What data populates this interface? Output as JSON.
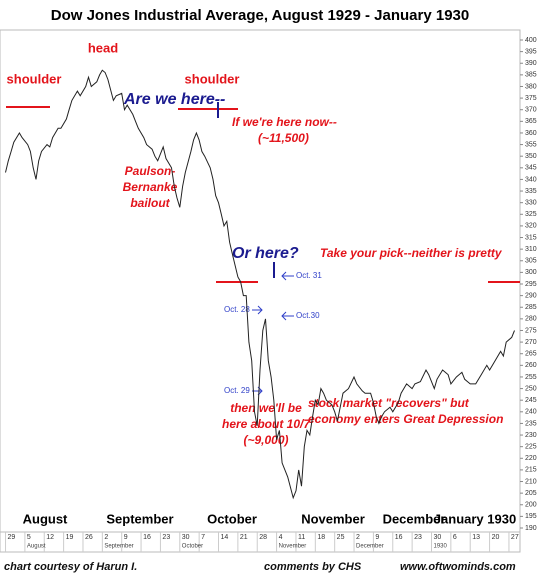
{
  "chart_data": {
    "type": "line",
    "title": "Dow Jones Industrial Average, August 1929 - January 1930",
    "series": [
      {
        "name": "DJIA",
        "color": "#222222",
        "x": [
          0,
          1,
          2,
          3,
          5,
          6,
          8,
          9,
          10,
          11,
          12,
          13,
          15,
          16,
          17,
          19,
          20,
          22,
          23,
          24,
          26,
          27,
          29,
          30,
          31,
          33,
          34,
          35,
          36,
          37,
          39,
          40,
          42,
          43,
          44,
          46,
          47,
          48,
          50,
          51,
          53,
          54,
          55,
          57,
          58,
          60,
          61,
          62,
          63,
          64,
          65,
          67,
          68,
          69,
          70,
          71,
          72,
          74,
          75,
          76,
          77,
          78,
          79,
          80,
          81,
          82,
          83,
          84,
          85,
          86,
          87,
          88,
          89,
          90,
          91,
          92,
          93,
          94,
          95,
          96,
          97,
          98,
          99,
          100,
          102,
          104,
          105,
          106,
          107,
          108,
          109,
          110,
          111,
          112,
          113,
          114,
          115,
          116,
          118,
          119,
          120,
          121,
          122,
          124,
          126,
          127,
          129,
          130,
          132,
          133,
          134,
          135,
          136,
          137,
          139,
          140,
          142,
          143,
          145,
          147,
          148,
          150,
          152,
          153,
          155,
          156,
          158,
          160,
          161,
          163,
          165,
          166,
          168,
          170,
          172,
          174,
          175,
          177,
          179,
          180,
          181,
          183,
          184
        ],
        "values": [
          343,
          348,
          352,
          356,
          360,
          358,
          355,
          352,
          345,
          340,
          348,
          352,
          355,
          354,
          358,
          362,
          362,
          366,
          370,
          374,
          378,
          376,
          380,
          384,
          380,
          382,
          385,
          387,
          386,
          383,
          374,
          376,
          377,
          370,
          372,
          368,
          365,
          362,
          358,
          355,
          353,
          350,
          348,
          354,
          349,
          345,
          337,
          332,
          328,
          337,
          343,
          352,
          357,
          360,
          357,
          352,
          350,
          345,
          340,
          333,
          330,
          325,
          320,
          322,
          313,
          308,
          303,
          298,
          296,
          290,
          290,
          270,
          262,
          240,
          234,
          258,
          275,
          280,
          262,
          255,
          245,
          228,
          232,
          218,
          212,
          203,
          206,
          215,
          208,
          225,
          232,
          230,
          238,
          245,
          243,
          250,
          248,
          245,
          243,
          240,
          236,
          242,
          248,
          250,
          255,
          252,
          249,
          248,
          248,
          244,
          238,
          235,
          238,
          240,
          242,
          240,
          244,
          248,
          252,
          250,
          252,
          253,
          258,
          256,
          250,
          254,
          258,
          256,
          252,
          255,
          257,
          254,
          252,
          252,
          256,
          260,
          258,
          262,
          266,
          264,
          270,
          272,
          275
        ]
      }
    ],
    "xlim": [
      -2,
      186
    ],
    "xticks": [
      {
        "value": 0,
        "label": "29"
      },
      {
        "value": 7,
        "label": "5"
      },
      {
        "value": 14,
        "label": "12"
      },
      {
        "value": 21,
        "label": "19"
      },
      {
        "value": 28,
        "label": "26"
      },
      {
        "value": 35,
        "label": "2"
      },
      {
        "value": 42,
        "label": "9"
      },
      {
        "value": 49,
        "label": "16"
      },
      {
        "value": 56,
        "label": "23"
      },
      {
        "value": 63,
        "label": "30"
      },
      {
        "value": 70,
        "label": "7"
      },
      {
        "value": 77,
        "label": "14"
      },
      {
        "value": 84,
        "label": "21"
      },
      {
        "value": 91,
        "label": "28"
      },
      {
        "value": 98,
        "label": "4"
      },
      {
        "value": 105,
        "label": "11"
      },
      {
        "value": 112,
        "label": "18"
      },
      {
        "value": 119,
        "label": "25"
      },
      {
        "value": 126,
        "label": "2"
      },
      {
        "value": 133,
        "label": "9"
      },
      {
        "value": 140,
        "label": "16"
      },
      {
        "value": 147,
        "label": "23"
      },
      {
        "value": 154,
        "label": "30"
      },
      {
        "value": 161,
        "label": "6"
      },
      {
        "value": 168,
        "label": "13"
      },
      {
        "value": 175,
        "label": "20"
      },
      {
        "value": 182,
        "label": "27"
      }
    ],
    "ylim": [
      190,
      400
    ],
    "yticks": [
      190,
      195,
      200,
      205,
      210,
      215,
      220,
      225,
      230,
      235,
      240,
      245,
      250,
      255,
      260,
      265,
      270,
      275,
      280,
      285,
      290,
      295,
      300,
      305,
      310,
      315,
      320,
      325,
      330,
      335,
      340,
      345,
      350,
      355,
      360,
      365,
      370,
      375,
      380,
      385,
      390,
      395,
      400
    ],
    "month_labels": [
      "August",
      "September",
      "October",
      "November",
      "December",
      "January 1930"
    ],
    "month_sublabels": [
      "August",
      "September",
      "October",
      "November",
      "December",
      "1930"
    ],
    "annotations": [
      "head",
      "shoulder",
      "shoulder",
      "Are we here--",
      "If we're here now--",
      "(~11,500)",
      "Paulson-",
      "Bernanke",
      "bailout",
      "Or here?",
      "Take your pick--neither is pretty",
      "Oct. 31",
      "Oct. 28",
      "Oct.30",
      "Oct. 29",
      "then we'll be",
      "here about 10/7",
      "(~9,000)",
      "stock market \"recovers\" but",
      "economy enters Great Depression"
    ],
    "footer": [
      "chart courtesy of Harun I.",
      "comments by CHS",
      "www.oftwominds.com"
    ]
  }
}
